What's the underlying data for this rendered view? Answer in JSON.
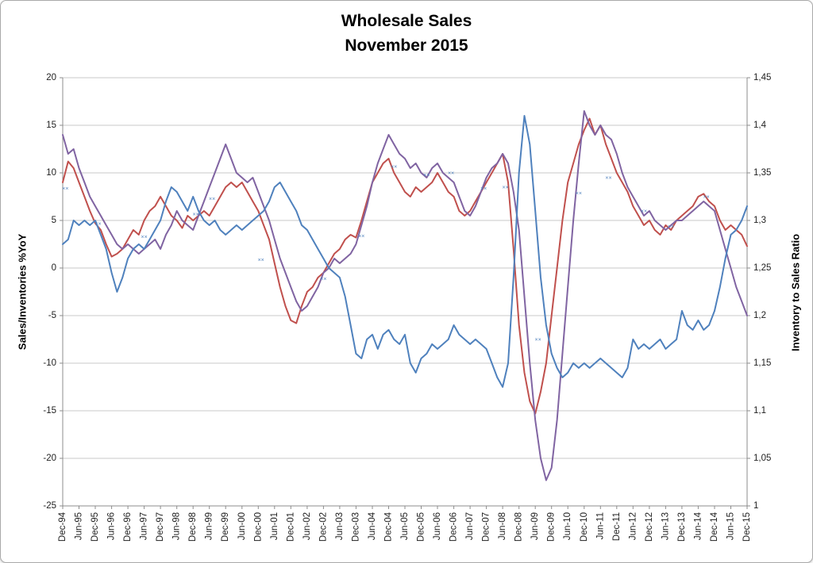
{
  "chart_data": {
    "type": "line",
    "title": "Wholesale Sales",
    "subtitle": "November 2015",
    "style": {
      "grid_color": "#c9c9c9",
      "axis_color": "#8c8c8c",
      "text_color": "#1f1f1f",
      "background": "#ffffff"
    },
    "y_left": {
      "title": "Sales/Inventories %YoY",
      "min": -25,
      "max": 20,
      "ticks": [
        20,
        15,
        10,
        5,
        0,
        -5,
        -10,
        -15,
        -20,
        -25
      ],
      "tick_labels": [
        "20",
        "15",
        "10",
        "5",
        "0",
        "-5",
        "-10",
        "-15",
        "-20",
        "-25"
      ]
    },
    "y_right": {
      "title": "Inventory to Sales Ratio",
      "min": 1,
      "max": 1.45,
      "ticks": [
        1.45,
        1.4,
        1.35,
        1.3,
        1.25,
        1.2,
        1.15,
        1.1,
        1.05,
        1.0
      ],
      "tick_labels": [
        "1,45",
        "1,4",
        "1,35",
        "1,3",
        "1,25",
        "1,2",
        "1,15",
        "1,1",
        "1,05",
        "1"
      ]
    },
    "x": {
      "start_label": "Dec-94",
      "end_label": "Dec-15",
      "months_total": 252,
      "sample_step_months": 2,
      "tick_every_months": 6,
      "tick_labels": [
        "Dec-94",
        "Jun-95",
        "Dec-95",
        "Jun-96",
        "Dec-96",
        "Jun-97",
        "Dec-97",
        "Jun-98",
        "Dec-98",
        "Jun-99",
        "Dec-99",
        "Jun-00",
        "Dec-00",
        "Jun-01",
        "Dec-01",
        "Jun-02",
        "Dec-02",
        "Jun-03",
        "Dec-03",
        "Jun-04",
        "Dec-04",
        "Jun-05",
        "Dec-05",
        "Jun-06",
        "Dec-06",
        "Jun-07",
        "Dec-07",
        "Jun-08",
        "Dec-08",
        "Jun-09",
        "Dec-09",
        "Jun-10",
        "Dec-10",
        "Jun-11",
        "Dec-11",
        "Jun-12",
        "Dec-12",
        "Jun-13",
        "Dec-13",
        "Jun-14",
        "Dec-14",
        "Jun-15",
        "Dec-15"
      ]
    },
    "series": [
      {
        "id": "sales-yoy-red",
        "axis": "left",
        "color": "#c0504d",
        "values": [
          9.0,
          11.2,
          10.5,
          9.0,
          7.5,
          6.0,
          4.7,
          4.0,
          2.5,
          1.2,
          1.5,
          2.0,
          3.0,
          4.0,
          3.5,
          5.0,
          6.0,
          6.5,
          7.5,
          6.5,
          5.5,
          5.0,
          4.2,
          5.5,
          5.0,
          5.5,
          6.0,
          5.5,
          6.5,
          7.5,
          8.5,
          9.0,
          8.5,
          9.0,
          8.0,
          7.0,
          6.0,
          4.5,
          3.0,
          0.5,
          -2.0,
          -4.0,
          -5.5,
          -5.8,
          -4.0,
          -2.5,
          -2.0,
          -1.0,
          -0.5,
          0.5,
          1.5,
          2.0,
          3.0,
          3.5,
          3.2,
          5.0,
          7.0,
          9.0,
          10.0,
          11.0,
          11.5,
          10.0,
          9.0,
          8.0,
          7.5,
          8.5,
          8.0,
          8.5,
          9.0,
          10.0,
          9.0,
          8.0,
          7.5,
          6.0,
          5.5,
          6.0,
          7.0,
          8.0,
          9.0,
          10.0,
          11.0,
          12.0,
          9.0,
          2.0,
          -6.0,
          -11.0,
          -14.0,
          -15.3,
          -13.0,
          -10.0,
          -5.0,
          0.0,
          5.0,
          9.0,
          11.0,
          13.0,
          14.5,
          15.7,
          14.0,
          15.0,
          13.0,
          11.5,
          10.0,
          9.0,
          8.0,
          6.5,
          5.5,
          4.5,
          5.0,
          4.0,
          3.5,
          4.5,
          4.0,
          5.0,
          5.5,
          6.0,
          6.5,
          7.5,
          7.8,
          7.0,
          6.5,
          5.0,
          4.0,
          4.5,
          4.0,
          3.5,
          2.3
        ]
      },
      {
        "id": "inventories-yoy-purple",
        "axis": "left",
        "color": "#8064a2",
        "values": [
          14.0,
          12.0,
          12.5,
          10.5,
          9.0,
          7.5,
          6.5,
          5.5,
          4.5,
          3.5,
          2.5,
          2.0,
          2.5,
          2.0,
          1.5,
          2.0,
          2.5,
          3.0,
          2.0,
          3.5,
          4.5,
          6.0,
          5.0,
          4.5,
          4.0,
          5.5,
          7.0,
          8.5,
          10.0,
          11.5,
          13.0,
          11.5,
          10.0,
          9.5,
          9.0,
          9.5,
          8.0,
          6.5,
          5.0,
          3.0,
          1.0,
          -0.5,
          -2.0,
          -3.5,
          -4.5,
          -4.0,
          -3.0,
          -2.0,
          -0.5,
          0.0,
          1.0,
          0.5,
          1.0,
          1.5,
          2.5,
          4.5,
          6.5,
          9.0,
          11.0,
          12.5,
          14.0,
          13.0,
          12.0,
          11.5,
          10.5,
          11.0,
          10.0,
          9.5,
          10.5,
          11.0,
          10.0,
          9.5,
          9.0,
          7.5,
          6.0,
          5.5,
          6.5,
          8.0,
          9.5,
          10.5,
          11.0,
          12.0,
          11.0,
          8.0,
          4.0,
          -3.0,
          -10.0,
          -16.0,
          -20.0,
          -22.3,
          -21.0,
          -16.0,
          -9.0,
          -2.0,
          5.0,
          11.0,
          16.5,
          15.0,
          14.0,
          15.0,
          14.0,
          13.5,
          12.0,
          10.0,
          8.5,
          7.5,
          6.5,
          5.5,
          6.0,
          5.0,
          4.5,
          4.0,
          4.5,
          5.0,
          5.0,
          5.5,
          6.0,
          6.5,
          7.0,
          6.5,
          6.0,
          4.0,
          2.0,
          0.0,
          -2.0,
          -3.5,
          -5.0
        ]
      },
      {
        "id": "inventory-to-sales-ratio-blue",
        "axis": "right",
        "color": "#4f81bd",
        "values": [
          1.275,
          1.28,
          1.3,
          1.295,
          1.3,
          1.295,
          1.3,
          1.285,
          1.27,
          1.245,
          1.225,
          1.24,
          1.26,
          1.27,
          1.275,
          1.27,
          1.28,
          1.29,
          1.3,
          1.32,
          1.335,
          1.33,
          1.32,
          1.31,
          1.325,
          1.31,
          1.3,
          1.295,
          1.3,
          1.29,
          1.285,
          1.29,
          1.295,
          1.29,
          1.295,
          1.3,
          1.305,
          1.31,
          1.32,
          1.335,
          1.34,
          1.33,
          1.32,
          1.31,
          1.295,
          1.29,
          1.28,
          1.27,
          1.26,
          1.25,
          1.245,
          1.24,
          1.22,
          1.19,
          1.16,
          1.155,
          1.175,
          1.18,
          1.165,
          1.18,
          1.185,
          1.175,
          1.17,
          1.18,
          1.15,
          1.14,
          1.155,
          1.16,
          1.17,
          1.165,
          1.17,
          1.175,
          1.19,
          1.18,
          1.175,
          1.17,
          1.175,
          1.17,
          1.165,
          1.15,
          1.135,
          1.125,
          1.15,
          1.24,
          1.35,
          1.41,
          1.38,
          1.31,
          1.24,
          1.19,
          1.16,
          1.145,
          1.135,
          1.14,
          1.15,
          1.145,
          1.15,
          1.145,
          1.15,
          1.155,
          1.15,
          1.145,
          1.14,
          1.135,
          1.145,
          1.175,
          1.165,
          1.17,
          1.165,
          1.17,
          1.175,
          1.165,
          1.17,
          1.175,
          1.205,
          1.19,
          1.185,
          1.195,
          1.185,
          1.19,
          1.205,
          1.23,
          1.26,
          1.285,
          1.29,
          1.3,
          1.315
        ]
      }
    ],
    "markers": {
      "color": "#4f81bd",
      "glyph": "××",
      "axis": "left",
      "points": [
        [
          1,
          8.3
        ],
        [
          13,
          4.6
        ],
        [
          30,
          3.2
        ],
        [
          49,
          5.6
        ],
        [
          55,
          7.2
        ],
        [
          73,
          0.8
        ],
        [
          96,
          -1.2
        ],
        [
          110,
          3.3
        ],
        [
          122,
          10.6
        ],
        [
          134,
          9.7
        ],
        [
          143,
          9.9
        ],
        [
          155,
          8.3
        ],
        [
          163,
          8.4
        ],
        [
          175,
          -7.6
        ],
        [
          190,
          7.8
        ],
        [
          201,
          9.4
        ],
        [
          214,
          5.9
        ],
        [
          224,
          4.3
        ],
        [
          237,
          7.4
        ]
      ]
    }
  }
}
